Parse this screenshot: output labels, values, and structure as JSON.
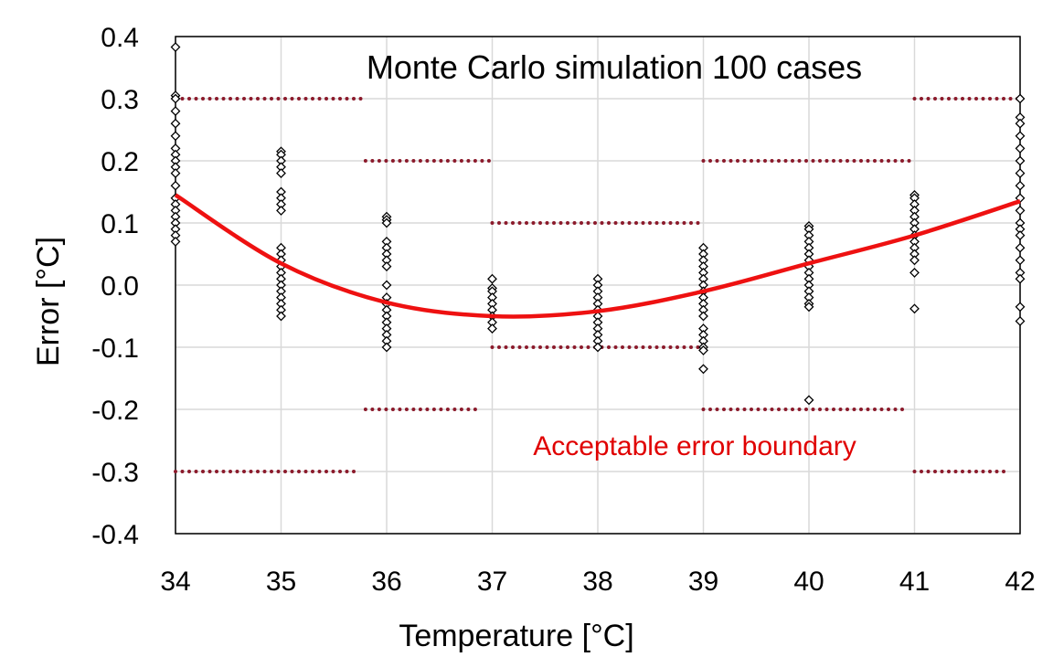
{
  "chart_data": {
    "type": "scatter",
    "title": "Monte Carlo simulation 100 cases",
    "xlabel": "Temperature  [°C]",
    "ylabel": "Error  [°C]",
    "xlim": [
      34,
      42
    ],
    "ylim": [
      -0.4,
      0.4
    ],
    "x_ticks": [
      "34",
      "35",
      "36",
      "37",
      "38",
      "39",
      "40",
      "41",
      "42"
    ],
    "y_ticks": [
      "0.4",
      "0.3",
      "0.2",
      "0.1",
      "0.0",
      "-0.1",
      "-0.2",
      "-0.3",
      "-0.4"
    ],
    "grid": true,
    "annotation": "Acceptable error boundary",
    "colors": {
      "mean_line": "#ee1111",
      "boundary": "#8b1a2b",
      "markers": "#000000",
      "grid": "#d9d9d9"
    },
    "mean_curve": {
      "x": [
        34,
        35,
        36,
        37,
        38,
        39,
        40,
        41,
        42
      ],
      "y": [
        0.145,
        0.035,
        -0.028,
        -0.05,
        -0.042,
        -0.01,
        0.035,
        0.08,
        0.135
      ]
    },
    "boundaries": [
      {
        "x": [
          34,
          35.8
        ],
        "y": 0.3
      },
      {
        "x": [
          34,
          35.7
        ],
        "y": -0.3
      },
      {
        "x": [
          35.8,
          37
        ],
        "y": 0.2
      },
      {
        "x": [
          35.8,
          36.9
        ],
        "y": -0.2
      },
      {
        "x": [
          37,
          39
        ],
        "y": 0.1
      },
      {
        "x": [
          37,
          39
        ],
        "y": -0.1
      },
      {
        "x": [
          39,
          41
        ],
        "y": 0.2
      },
      {
        "x": [
          39,
          40.9
        ],
        "y": -0.2
      },
      {
        "x": [
          41,
          42
        ],
        "y": 0.3
      },
      {
        "x": [
          41,
          41.9
        ],
        "y": -0.3
      }
    ],
    "scatter": [
      {
        "x": 34,
        "y": [
          0.383,
          0.305,
          0.3,
          0.28,
          0.26,
          0.24,
          0.22,
          0.21,
          0.2,
          0.19,
          0.18,
          0.16,
          0.14,
          0.13,
          0.12,
          0.11,
          0.1,
          0.09,
          0.08,
          0.07
        ]
      },
      {
        "x": 35,
        "y": [
          0.215,
          0.21,
          0.2,
          0.19,
          0.18,
          0.15,
          0.14,
          0.13,
          0.12,
          0.06,
          0.05,
          0.04,
          0.03,
          0.02,
          0.01,
          0.0,
          -0.01,
          -0.02,
          -0.03,
          -0.04,
          -0.05
        ]
      },
      {
        "x": 36,
        "y": [
          0.11,
          0.105,
          0.1,
          0.07,
          0.06,
          0.05,
          0.04,
          0.03,
          0.0,
          -0.02,
          -0.03,
          -0.04,
          -0.05,
          -0.06,
          -0.07,
          -0.08,
          -0.09,
          -0.1
        ]
      },
      {
        "x": 37,
        "y": [
          0.01,
          -0.005,
          -0.01,
          -0.02,
          -0.03,
          -0.04,
          -0.05,
          -0.06,
          -0.07
        ]
      },
      {
        "x": 38,
        "y": [
          0.01,
          0.0,
          -0.01,
          -0.02,
          -0.03,
          -0.04,
          -0.05,
          -0.06,
          -0.07,
          -0.08,
          -0.09,
          -0.1
        ]
      },
      {
        "x": 39,
        "y": [
          0.06,
          0.05,
          0.04,
          0.03,
          0.02,
          0.01,
          0.0,
          -0.01,
          -0.02,
          -0.03,
          -0.04,
          -0.05,
          -0.07,
          -0.08,
          -0.09,
          -0.1,
          -0.105,
          -0.135
        ]
      },
      {
        "x": 40,
        "y": [
          0.095,
          0.09,
          0.08,
          0.07,
          0.06,
          0.05,
          0.04,
          0.03,
          0.02,
          0.01,
          0.0,
          -0.01,
          -0.02,
          -0.03,
          -0.035,
          -0.185
        ]
      },
      {
        "x": 41,
        "y": [
          0.145,
          0.14,
          0.13,
          0.12,
          0.11,
          0.1,
          0.09,
          0.08,
          0.07,
          0.06,
          0.05,
          0.04,
          0.02,
          -0.038
        ]
      },
      {
        "x": 42,
        "y": [
          0.3,
          0.27,
          0.26,
          0.24,
          0.22,
          0.2,
          0.18,
          0.16,
          0.14,
          0.12,
          0.1,
          0.09,
          0.08,
          0.06,
          0.04,
          0.02,
          0.01,
          -0.035,
          -0.058
        ]
      }
    ]
  }
}
